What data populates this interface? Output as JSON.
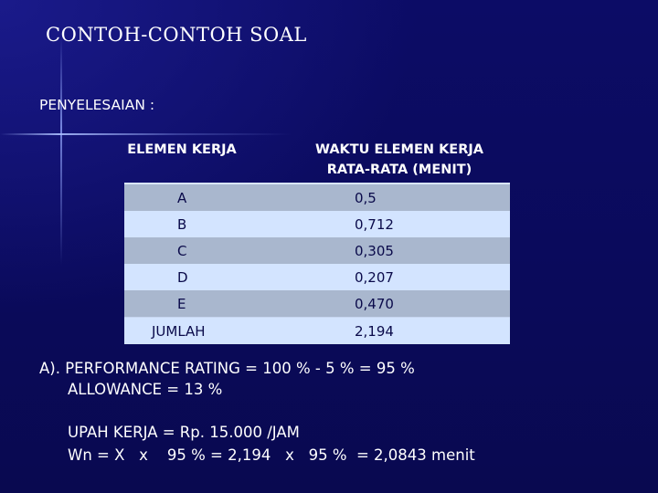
{
  "slide": {
    "title": "CONTOH-CONTOH SOAL",
    "subtitle": "PENYELESAIAN :"
  },
  "table": {
    "headers": [
      "ELEMEN KERJA",
      "WAKTU ELEMEN KERJA",
      "RATA-RATA (MENIT)"
    ],
    "rows": [
      {
        "element": "A",
        "time": "0,5"
      },
      {
        "element": "B",
        "time": "0,712"
      },
      {
        "element": "C",
        "time": "0,305"
      },
      {
        "element": "D",
        "time": "0,207"
      },
      {
        "element": "E",
        "time": "0,470"
      }
    ],
    "total": {
      "label": "JUMLAH",
      "value": "2,194"
    }
  },
  "text": {
    "line1": "A). PERFORMANCE RATING = 100 % - 5 % = 95 %",
    "line2": "ALLOWANCE = 13 %",
    "line3": "UPAH KERJA = Rp. 15.000 /JAM",
    "line4": "Wn = X   x    95 % = 2,194   x   95 %  = 2,0843 menit"
  }
}
